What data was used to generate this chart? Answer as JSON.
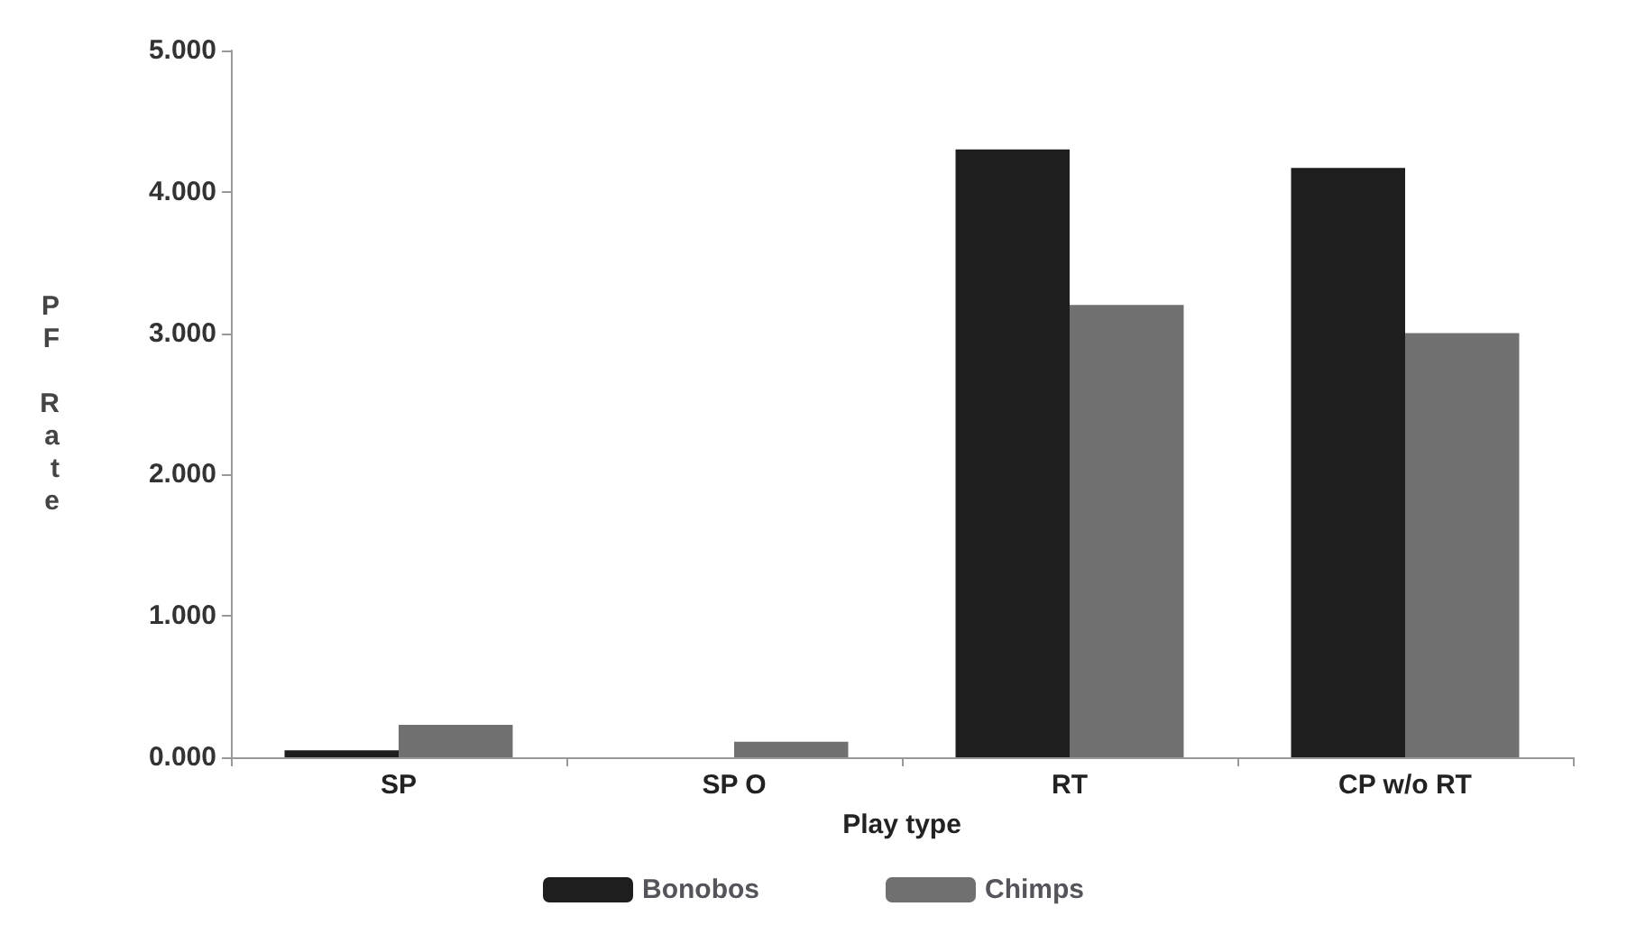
{
  "chart_data": {
    "type": "bar",
    "xlabel": "Play type",
    "ylabel": "PF Rate",
    "categories": [
      "SP",
      "SP O",
      "RT",
      "CP w/o RT"
    ],
    "series": [
      {
        "name": "Bonobos",
        "color": "#1e1e1e",
        "values": [
          0.05,
          0,
          4.3,
          4.17
        ]
      },
      {
        "name": "Chimps",
        "color": "#707070",
        "values": [
          0.23,
          0.11,
          3.2,
          3.0
        ]
      }
    ],
    "ylim": [
      0,
      5
    ],
    "yticks": [
      {
        "value": 0,
        "label": "0.000"
      },
      {
        "value": 1,
        "label": "1.000"
      },
      {
        "value": 2,
        "label": "2.000"
      },
      {
        "value": 3,
        "label": "3.000"
      },
      {
        "value": 4,
        "label": "4.000"
      },
      {
        "value": 5,
        "label": "5.000"
      }
    ],
    "grid": false,
    "legend": "bottom"
  }
}
